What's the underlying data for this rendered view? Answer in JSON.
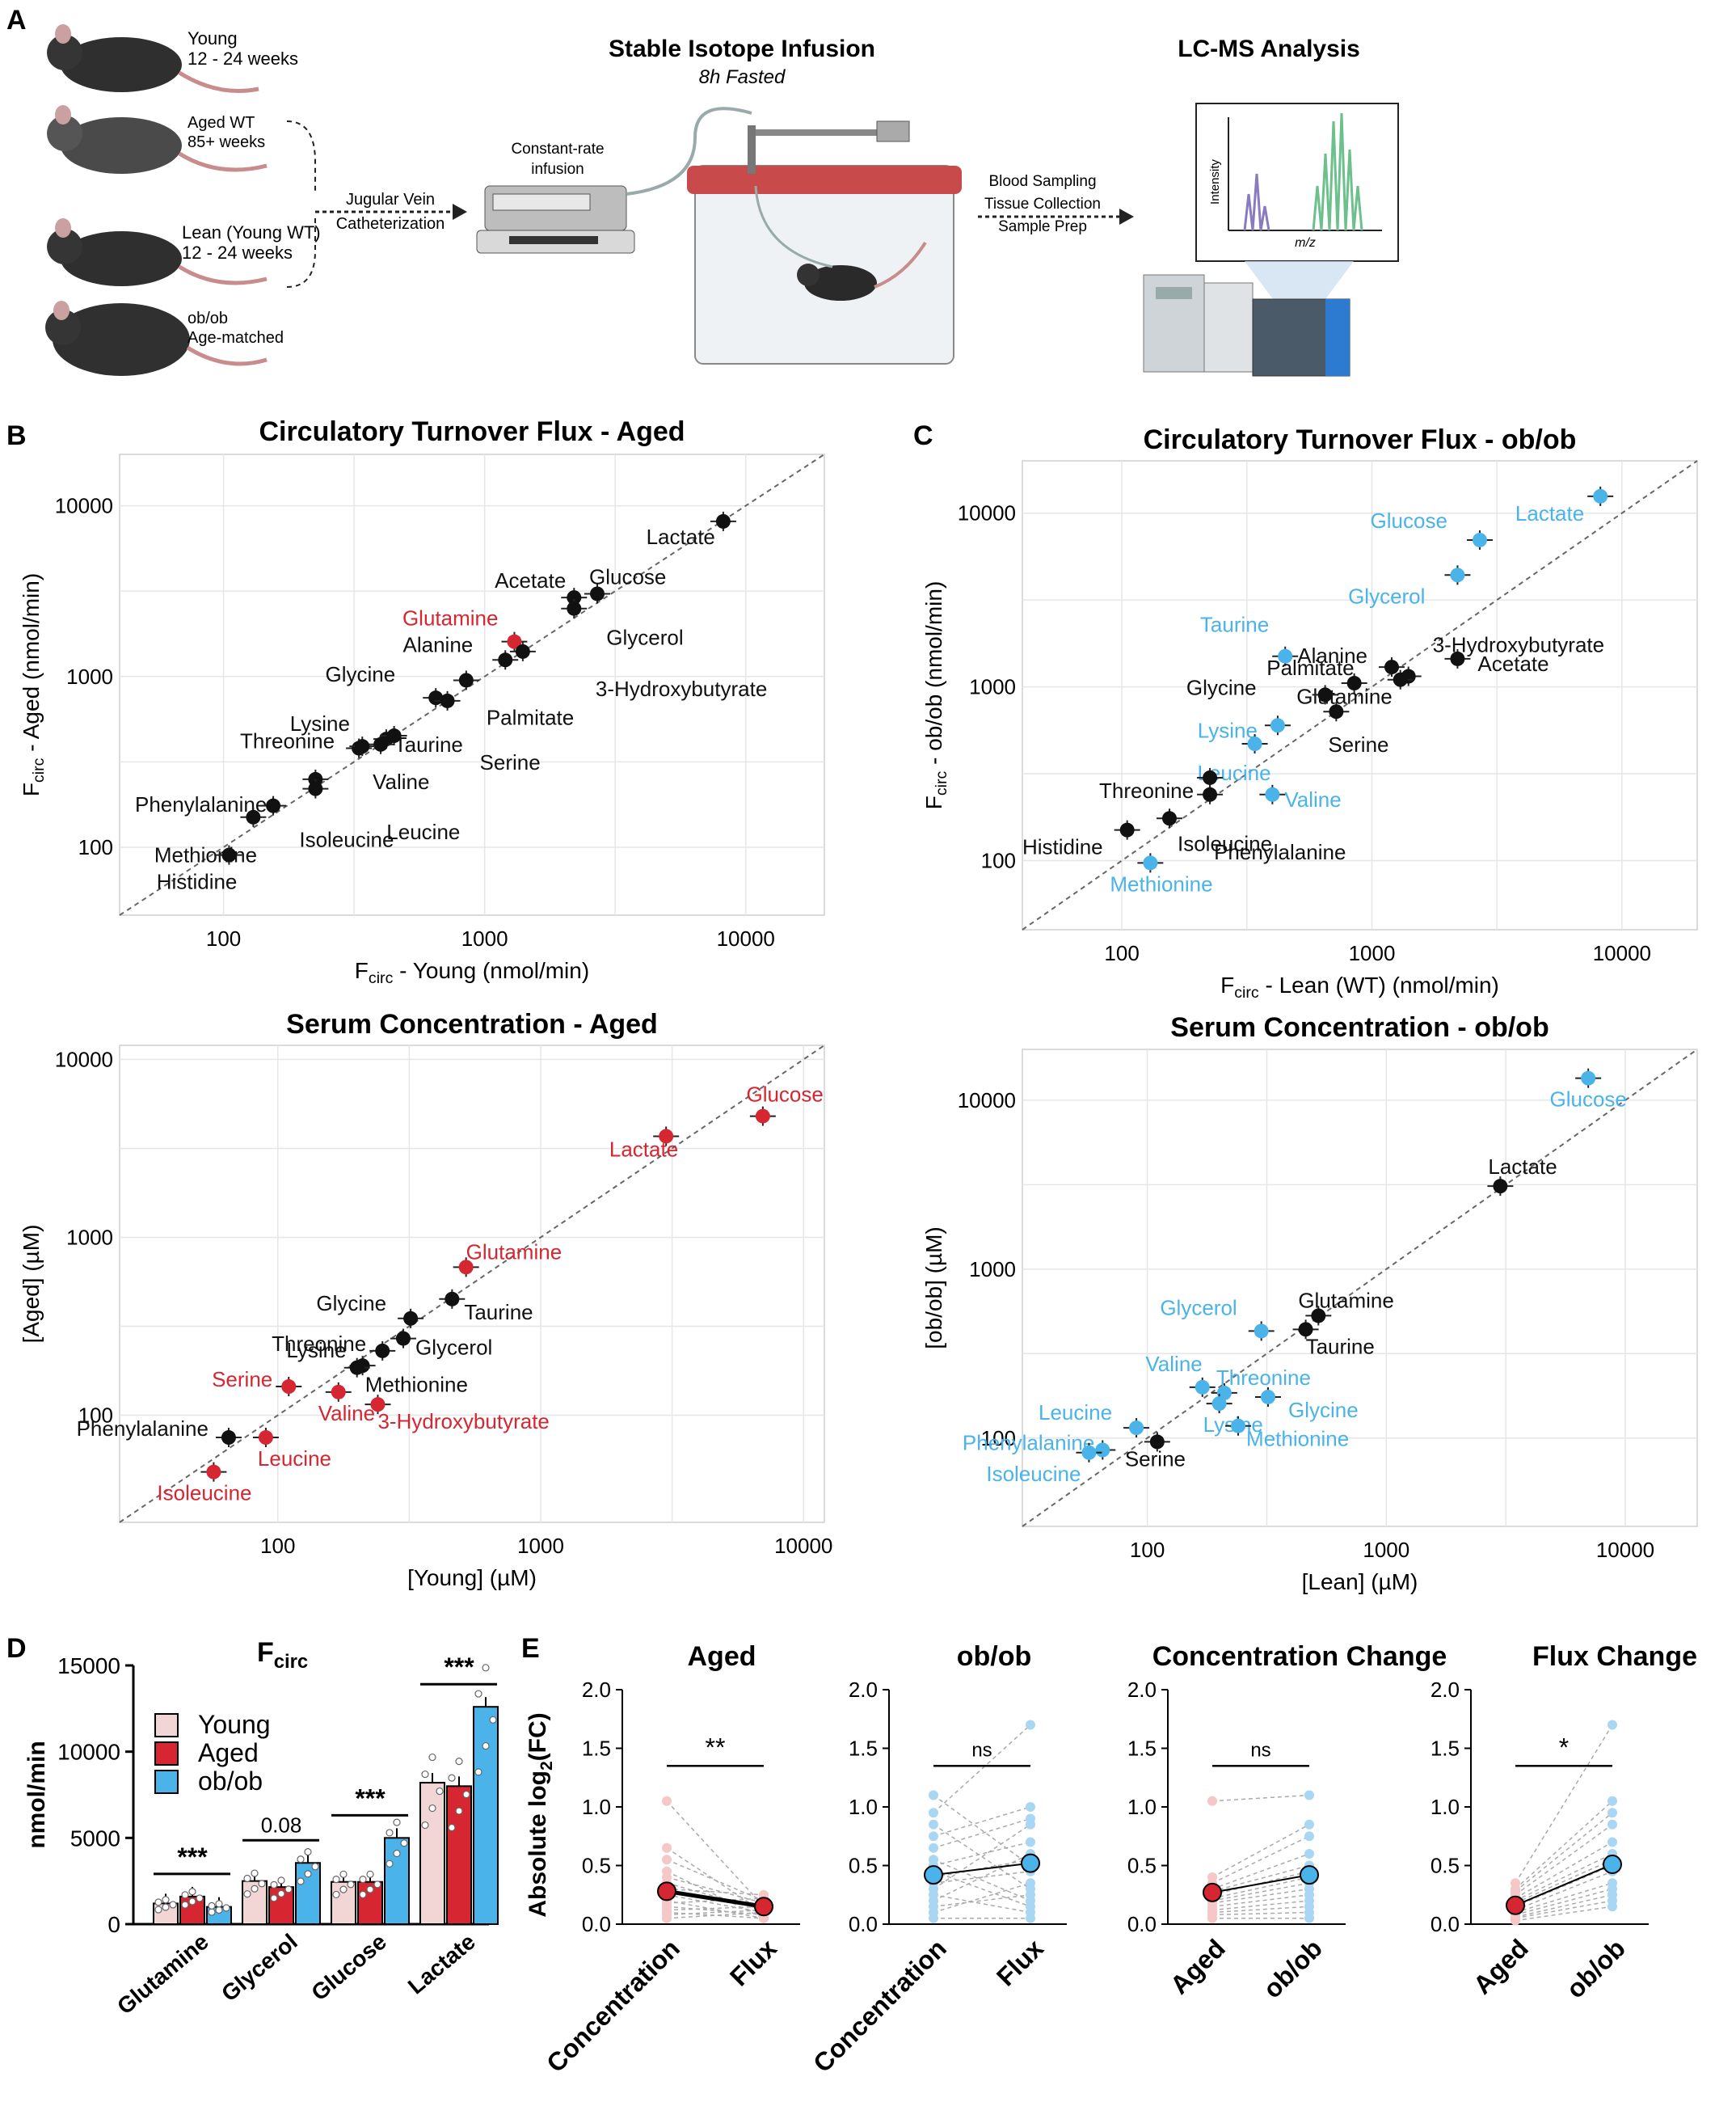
{
  "panel_letters": {
    "a": "A",
    "b": "B",
    "c": "C",
    "d": "D",
    "e": "E"
  },
  "schematic": {
    "young": [
      "Young",
      "12 - 24 weeks"
    ],
    "aged_wt": [
      "Aged WT",
      "85+ weeks"
    ],
    "lean": [
      "Lean (Young WT)",
      "12 - 24 weeks"
    ],
    "obob": [
      "ob/ob",
      "Age-matched"
    ],
    "jugular": [
      "Jugular Vein",
      "Catheterization"
    ],
    "pump": [
      "Constant-rate",
      "infusion"
    ],
    "infusion_title": "Stable Isotope Infusion",
    "infusion_sub": "8h Fasted",
    "sampling": [
      "Blood Sampling",
      "Tissue Collection",
      "Sample Prep"
    ],
    "lcms_title": "LC-MS Analysis",
    "ms_ylabel": "Intensity",
    "ms_xlabel": "m/z"
  },
  "colors": {
    "black": "#111111",
    "red": "#d62631",
    "blue": "#4ab3ea",
    "pink": "#f5c7c7",
    "light_blue": "#a8d6f3",
    "grid": "#e6e6e6"
  },
  "chart_data": [
    {
      "id": "B1",
      "type": "scatter",
      "log": true,
      "title": "Circulatory Turnover Flux - Aged",
      "xlabel": "F_circ - Young (nmol/min)",
      "ylabel": "F_circ - Aged  (nmol/min)",
      "xlim": [
        40,
        20000
      ],
      "ylim": [
        40,
        20000
      ],
      "ticks": [
        100,
        1000,
        10000
      ],
      "points": [
        {
          "name": "Lactate",
          "x": 8200,
          "y": 8100,
          "color": "black"
        },
        {
          "name": "Acetate",
          "x": 2200,
          "y": 2900,
          "color": "black"
        },
        {
          "name": "Glucose",
          "x": 2700,
          "y": 3050,
          "color": "black"
        },
        {
          "name": "Glycerol",
          "x": 2200,
          "y": 2500,
          "color": "black"
        },
        {
          "name": "Glutamine",
          "x": 1300,
          "y": 1600,
          "color": "red"
        },
        {
          "name": "Alanine",
          "x": 1200,
          "y": 1250,
          "color": "black"
        },
        {
          "name": "3-Hydroxybutyrate",
          "x": 1400,
          "y": 1400,
          "color": "black"
        },
        {
          "name": "Palmitate",
          "x": 850,
          "y": 950,
          "color": "black"
        },
        {
          "name": "Glycine",
          "x": 650,
          "y": 750,
          "color": "black"
        },
        {
          "name": "Serine",
          "x": 720,
          "y": 720,
          "color": "black"
        },
        {
          "name": "Lysine",
          "x": 420,
          "y": 430,
          "color": "black"
        },
        {
          "name": "Taurine",
          "x": 450,
          "y": 450,
          "color": "black"
        },
        {
          "name": "Threonine",
          "x": 330,
          "y": 380,
          "color": "black"
        },
        {
          "name": "Valine",
          "x": 400,
          "y": 400,
          "color": "black"
        },
        {
          "name": "Leucine",
          "x": 340,
          "y": 390,
          "color": "black"
        },
        {
          "name": "Phenylalanine",
          "x": 225,
          "y": 250,
          "color": "black"
        },
        {
          "name": "Isoleucine",
          "x": 225,
          "y": 220,
          "color": "black"
        },
        {
          "name": "Methionine",
          "x": 155,
          "y": 175,
          "color": "black"
        },
        {
          "name": "Methionine2",
          "x": 130,
          "y": 150,
          "color": "black"
        },
        {
          "name": "Histidine",
          "x": 105,
          "y": 90,
          "color": "black"
        }
      ]
    },
    {
      "id": "C1",
      "type": "scatter",
      "log": true,
      "title": "Circulatory Turnover Flux - ob/ob",
      "xlabel": "F_circ - Lean (WT) (nmol/min)",
      "ylabel": "F_circ - ob/ob (nmol/min)",
      "xlim": [
        40,
        20000
      ],
      "ylim": [
        40,
        20000
      ],
      "ticks": [
        100,
        1000,
        10000
      ],
      "points": [
        {
          "name": "Lactate",
          "x": 8200,
          "y": 12500,
          "color": "blue"
        },
        {
          "name": "Glucose",
          "x": 2700,
          "y": 7000,
          "color": "blue"
        },
        {
          "name": "Glycerol",
          "x": 2200,
          "y": 4400,
          "color": "blue"
        },
        {
          "name": "Taurine",
          "x": 450,
          "y": 1500,
          "color": "blue"
        },
        {
          "name": "Alanine",
          "x": 1200,
          "y": 1300,
          "color": "black"
        },
        {
          "name": "3-Hydroxybutyrate",
          "x": 1400,
          "y": 1150,
          "color": "black"
        },
        {
          "name": "Acetate",
          "x": 2200,
          "y": 1450,
          "color": "black"
        },
        {
          "name": "Palmitate",
          "x": 850,
          "y": 1050,
          "color": "black"
        },
        {
          "name": "Glutamine",
          "x": 1300,
          "y": 1100,
          "color": "black"
        },
        {
          "name": "Glycine",
          "x": 650,
          "y": 900,
          "color": "black"
        },
        {
          "name": "Serine",
          "x": 720,
          "y": 720,
          "color": "black"
        },
        {
          "name": "Lysine",
          "x": 420,
          "y": 600,
          "color": "blue"
        },
        {
          "name": "Leucine",
          "x": 340,
          "y": 470,
          "color": "blue"
        },
        {
          "name": "Valine",
          "x": 400,
          "y": 240,
          "color": "blue"
        },
        {
          "name": "Threonine",
          "x": 225,
          "y": 300,
          "color": "black"
        },
        {
          "name": "Phenylalanine",
          "x": 225,
          "y": 240,
          "color": "black"
        },
        {
          "name": "Isoleucine",
          "x": 155,
          "y": 175,
          "color": "black"
        },
        {
          "name": "Histidine",
          "x": 105,
          "y": 150,
          "color": "black"
        },
        {
          "name": "Methionine",
          "x": 130,
          "y": 97,
          "color": "blue"
        }
      ]
    },
    {
      "id": "B2",
      "type": "scatter",
      "log": true,
      "title": "Serum Concentration - Aged",
      "xlabel": "[Young] (µM)",
      "ylabel": "[Aged] (µM)",
      "xlim": [
        25,
        12000
      ],
      "ylim": [
        25,
        12000
      ],
      "ticks": [
        100,
        1000,
        10000
      ],
      "points": [
        {
          "name": "Glucose",
          "x": 7000,
          "y": 4800,
          "color": "red"
        },
        {
          "name": "Lactate",
          "x": 3000,
          "y": 3700,
          "color": "red"
        },
        {
          "name": "Glutamine",
          "x": 520,
          "y": 680,
          "color": "red"
        },
        {
          "name": "Taurine",
          "x": 460,
          "y": 450,
          "color": "black"
        },
        {
          "name": "Glycine",
          "x": 320,
          "y": 350,
          "color": "black"
        },
        {
          "name": "Threonine",
          "x": 250,
          "y": 230,
          "color": "black"
        },
        {
          "name": "Glycerol",
          "x": 300,
          "y": 270,
          "color": "black"
        },
        {
          "name": "Lysine",
          "x": 210,
          "y": 190,
          "color": "black"
        },
        {
          "name": "Methionine",
          "x": 200,
          "y": 185,
          "color": "black"
        },
        {
          "name": "Serine",
          "x": 110,
          "y": 145,
          "color": "red"
        },
        {
          "name": "Valine",
          "x": 170,
          "y": 135,
          "color": "red"
        },
        {
          "name": "3-Hydroxybutyrate",
          "x": 240,
          "y": 115,
          "color": "red"
        },
        {
          "name": "Phenylalanine",
          "x": 65,
          "y": 75,
          "color": "black"
        },
        {
          "name": "Leucine",
          "x": 90,
          "y": 75,
          "color": "red"
        },
        {
          "name": "Isoleucine",
          "x": 57,
          "y": 48,
          "color": "red"
        }
      ]
    },
    {
      "id": "C2",
      "type": "scatter",
      "log": true,
      "title": "Serum Concentration - ob/ob",
      "xlabel": "[Lean] (µM)",
      "ylabel": "[ob/ob] (µM)",
      "xlim": [
        30,
        20000
      ],
      "ylim": [
        30,
        20000
      ],
      "ticks": [
        100,
        1000,
        10000
      ],
      "points": [
        {
          "name": "Glucose",
          "x": 7000,
          "y": 13500,
          "color": "blue"
        },
        {
          "name": "Lactate",
          "x": 3000,
          "y": 3100,
          "color": "black"
        },
        {
          "name": "Glutamine",
          "x": 520,
          "y": 530,
          "color": "black"
        },
        {
          "name": "Taurine",
          "x": 460,
          "y": 440,
          "color": "black"
        },
        {
          "name": "Glycerol",
          "x": 300,
          "y": 430,
          "color": "blue"
        },
        {
          "name": "Valine",
          "x": 170,
          "y": 200,
          "color": "blue"
        },
        {
          "name": "Threonine",
          "x": 210,
          "y": 185,
          "color": "blue"
        },
        {
          "name": "Glycine",
          "x": 320,
          "y": 175,
          "color": "blue"
        },
        {
          "name": "Lysine",
          "x": 200,
          "y": 160,
          "color": "blue"
        },
        {
          "name": "Methionine",
          "x": 240,
          "y": 118,
          "color": "blue"
        },
        {
          "name": "Leucine",
          "x": 90,
          "y": 115,
          "color": "blue"
        },
        {
          "name": "Serine",
          "x": 110,
          "y": 95,
          "color": "black"
        },
        {
          "name": "Phenylalanine",
          "x": 65,
          "y": 85,
          "color": "blue"
        },
        {
          "name": "Isoleucine",
          "x": 57,
          "y": 82,
          "color": "blue"
        }
      ]
    },
    {
      "id": "D",
      "type": "bar",
      "title": "F_circ",
      "ylabel": "nmol/min",
      "ylim": [
        0,
        15000
      ],
      "yticks": [
        0,
        5000,
        10000,
        15000
      ],
      "categories": [
        "Glutamine",
        "Glycerol",
        "Glucose",
        "Lactate"
      ],
      "series": [
        {
          "name": "Young",
          "color": "#f2d5d5",
          "values": [
            1200,
            2500,
            2450,
            8200
          ]
        },
        {
          "name": "Aged",
          "color": "#d62631",
          "values": [
            1600,
            2150,
            2450,
            8000
          ]
        },
        {
          "name": "ob/ob",
          "color": "#4ab3ea",
          "values": [
            1000,
            3550,
            5000,
            12600
          ]
        }
      ],
      "annotations": [
        "***",
        "0.08",
        "***",
        "***"
      ]
    },
    {
      "id": "E1",
      "type": "line",
      "title": "Aged",
      "ylabel": "Absolute log2(FC)",
      "categories": [
        "Concentration",
        "Flux"
      ],
      "ylim": [
        0,
        2.0
      ],
      "yticks": [
        "0.0",
        "0.5",
        "1.0",
        "1.5",
        "2.0"
      ],
      "means": [
        0.28,
        0.15
      ],
      "mean_colors": [
        "#d62631",
        "#d62631"
      ],
      "significance": "**",
      "pairs": [
        [
          1.05,
          0.15
        ],
        [
          0.65,
          0.1
        ],
        [
          0.55,
          0.2
        ],
        [
          0.45,
          0.05
        ],
        [
          0.4,
          0.18
        ],
        [
          0.35,
          0.12
        ],
        [
          0.3,
          0.25
        ],
        [
          0.25,
          0.1
        ],
        [
          0.2,
          0.05
        ],
        [
          0.18,
          0.22
        ],
        [
          0.15,
          0.08
        ],
        [
          0.12,
          0.15
        ],
        [
          0.1,
          0.05
        ],
        [
          0.08,
          0.12
        ],
        [
          0.05,
          0.1
        ]
      ]
    },
    {
      "id": "E2",
      "type": "line",
      "title": "ob/ob",
      "ylabel": "",
      "categories": [
        "Concentration",
        "Flux"
      ],
      "ylim": [
        0,
        2.0
      ],
      "yticks": [
        "0.0",
        "0.5",
        "1.0",
        "1.5",
        "2.0"
      ],
      "means": [
        0.42,
        0.52
      ],
      "mean_colors": [
        "#4ab3ea",
        "#4ab3ea"
      ],
      "significance": "ns",
      "pairs": [
        [
          1.1,
          0.5
        ],
        [
          0.95,
          1.7
        ],
        [
          0.85,
          0.3
        ],
        [
          0.75,
          1.0
        ],
        [
          0.65,
          0.9
        ],
        [
          0.55,
          0.2
        ],
        [
          0.5,
          0.7
        ],
        [
          0.45,
          0.15
        ],
        [
          0.4,
          0.55
        ],
        [
          0.35,
          0.45
        ],
        [
          0.3,
          0.85
        ],
        [
          0.25,
          0.1
        ],
        [
          0.2,
          0.6
        ],
        [
          0.15,
          0.25
        ],
        [
          0.1,
          0.35
        ],
        [
          0.05,
          0.05
        ]
      ]
    },
    {
      "id": "E3",
      "type": "line",
      "title": "Concentration Change",
      "ylabel": "",
      "categories": [
        "Aged",
        "ob/ob"
      ],
      "ylim": [
        0,
        2.0
      ],
      "yticks": [
        "0.0",
        "0.5",
        "1.0",
        "1.5",
        "2.0"
      ],
      "means": [
        0.27,
        0.42
      ],
      "mean_colors": [
        "#d62631",
        "#4ab3ea"
      ],
      "significance": "ns",
      "pairs": [
        [
          1.05,
          1.1
        ],
        [
          0.4,
          0.85
        ],
        [
          0.35,
          0.75
        ],
        [
          0.3,
          0.6
        ],
        [
          0.28,
          0.5
        ],
        [
          0.25,
          0.45
        ],
        [
          0.22,
          0.4
        ],
        [
          0.2,
          0.35
        ],
        [
          0.18,
          0.3
        ],
        [
          0.15,
          0.25
        ],
        [
          0.12,
          0.2
        ],
        [
          0.1,
          0.15
        ],
        [
          0.08,
          0.1
        ],
        [
          0.05,
          0.05
        ]
      ]
    },
    {
      "id": "E4",
      "type": "line",
      "title": "Flux Change",
      "ylabel": "",
      "categories": [
        "Aged",
        "ob/ob"
      ],
      "ylim": [
        0,
        2.0
      ],
      "yticks": [
        "0.0",
        "0.5",
        "1.0",
        "1.5",
        "2.0"
      ],
      "means": [
        0.16,
        0.51
      ],
      "mean_colors": [
        "#d62631",
        "#4ab3ea"
      ],
      "significance": "*",
      "pairs": [
        [
          0.35,
          1.7
        ],
        [
          0.3,
          1.05
        ],
        [
          0.28,
          0.95
        ],
        [
          0.25,
          0.85
        ],
        [
          0.22,
          0.7
        ],
        [
          0.2,
          0.6
        ],
        [
          0.18,
          0.55
        ],
        [
          0.15,
          0.5
        ],
        [
          0.12,
          0.45
        ],
        [
          0.1,
          0.35
        ],
        [
          0.08,
          0.3
        ],
        [
          0.06,
          0.25
        ],
        [
          0.05,
          0.2
        ],
        [
          0.03,
          0.15
        ]
      ]
    }
  ]
}
